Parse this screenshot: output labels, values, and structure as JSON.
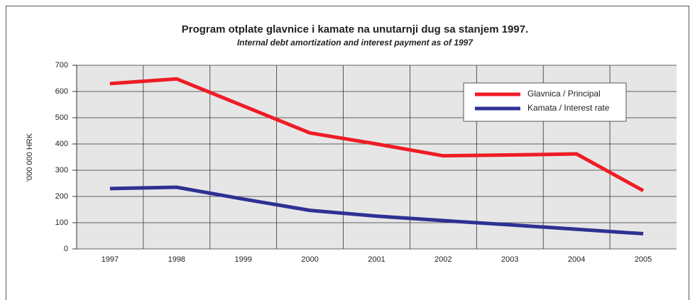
{
  "chart_data": {
    "type": "line",
    "title": "Program otplate glavnice i kamate na unutarnji dug sa stanjem 1997.",
    "subtitle": "Internal debt amortization and interest payment as of 1997",
    "y_label": "'000 000 HRK",
    "categories": [
      "1997",
      "1998",
      "1999",
      "2000",
      "2001",
      "2002",
      "2003",
      "2004",
      "2005"
    ],
    "series": [
      {
        "name": "Glavnica / Principal",
        "color": "#ee1c25",
        "values": [
          630,
          648,
          545,
          442,
          400,
          355,
          358,
          362,
          222
        ]
      },
      {
        "name": "Kamata / Interest rate",
        "color": "#2e3192",
        "values": [
          230,
          235,
          190,
          147,
          125,
          108,
          92,
          75,
          58
        ]
      }
    ],
    "ylim": [
      0,
      700
    ],
    "yticks": [
      0,
      100,
      200,
      300,
      400,
      500,
      600,
      700
    ],
    "grid": true,
    "legend": "upper right"
  }
}
